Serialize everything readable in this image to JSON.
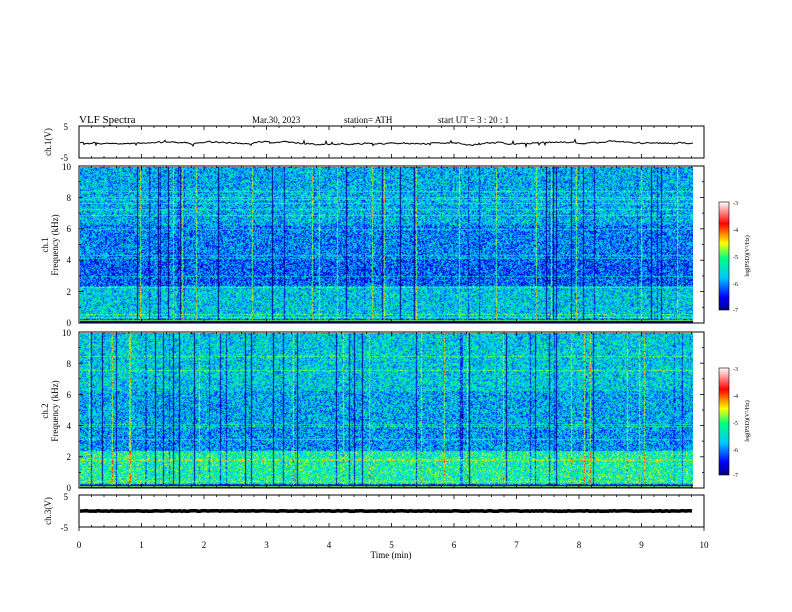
{
  "header": {
    "title": "VLF  Spectra",
    "date": "Mar.30, 2023",
    "station": "station= ATH",
    "start": "start  UT  =   3  : 20 : 1"
  },
  "chart_data": [
    {
      "type": "line",
      "panel": "ch1-waveform",
      "ylabel": "ch.1(V)",
      "ylim": [
        -5,
        5
      ],
      "y_ticks": [
        "5",
        "-5"
      ],
      "xlim": [
        0,
        10
      ]
    },
    {
      "type": "heatmap",
      "panel": "ch1-spectrogram",
      "ylabel_line1": "ch.1",
      "ylabel_line2": "Frequency (kHz)",
      "ylim": [
        0,
        10
      ],
      "y_ticks": [
        "0",
        "2",
        "4",
        "6",
        "8",
        "10"
      ],
      "xlim": [
        0,
        10
      ],
      "data_end_min": 9.8,
      "colorbar": {
        "label": "log(PSD)(V²/Hz)",
        "range": [
          -7,
          -3
        ],
        "ticks": [
          "-3",
          "-4",
          "-5",
          "-6",
          "-7"
        ]
      }
    },
    {
      "type": "heatmap",
      "panel": "ch2-spectrogram",
      "ylabel_line1": "ch.2",
      "ylabel_line2": "Frequency (kHz)",
      "ylim": [
        0,
        10
      ],
      "y_ticks": [
        "0",
        "2",
        "4",
        "6",
        "8",
        "10"
      ],
      "xlim": [
        0,
        10
      ],
      "data_end_min": 9.8,
      "colorbar": {
        "label": "log(PSD)(V²/Hz)",
        "range": [
          -7,
          -3
        ],
        "ticks": [
          "-3",
          "-4",
          "-5",
          "-6",
          "-7"
        ]
      }
    },
    {
      "type": "line",
      "panel": "ch3-waveform",
      "ylabel": "ch.3(V)",
      "ylim": [
        -5,
        5
      ],
      "y_ticks": [
        "5",
        "-5"
      ],
      "xlim": [
        0,
        10
      ]
    }
  ],
  "xaxis": {
    "label": "Time  (min)",
    "ticks": [
      "0",
      "1",
      "2",
      "3",
      "4",
      "5",
      "6",
      "7",
      "8",
      "9",
      "10"
    ]
  },
  "colors": {
    "colormap": [
      "#000080",
      "#0000ff",
      "#00c8ff",
      "#00ff80",
      "#ffff00",
      "#ff0000",
      "#ffffff"
    ]
  }
}
